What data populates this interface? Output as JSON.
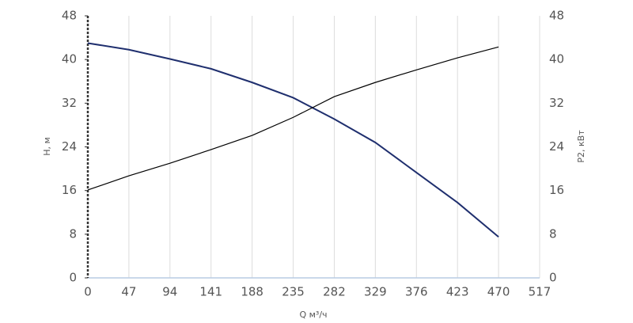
{
  "chart_data": {
    "type": "line",
    "x_label": "Q м³/ч",
    "y_label": "H, м",
    "y2_label": "P2, кВт",
    "x": [
      0,
      47,
      94,
      141,
      188,
      235,
      282,
      329,
      376,
      423,
      470
    ],
    "series": [
      {
        "name": "H, м",
        "color": "#1f2f6e",
        "axis": "y",
        "values": [
          43,
          41.8,
          40.1,
          38.3,
          35.8,
          33,
          29.1,
          24.8,
          19.3,
          13.8,
          7.5
        ]
      },
      {
        "name": "P2, кВт",
        "color": "#000000",
        "axis": "y2",
        "values": [
          16.1,
          18.7,
          21,
          23.5,
          26.1,
          29.4,
          33.2,
          35.8,
          38.1,
          40.3,
          42.3
        ]
      }
    ],
    "xlim": [
      0,
      517
    ],
    "xticks": [
      0,
      47,
      94,
      141,
      188,
      235,
      282,
      329,
      376,
      423,
      470,
      517
    ],
    "ylim": [
      0,
      48
    ],
    "yticks": [
      0,
      8,
      16,
      24,
      32,
      40,
      48
    ],
    "y2lim": [
      0,
      48
    ],
    "y2ticks": [
      0,
      8,
      16,
      24,
      32,
      40,
      48
    ],
    "grid": true
  }
}
